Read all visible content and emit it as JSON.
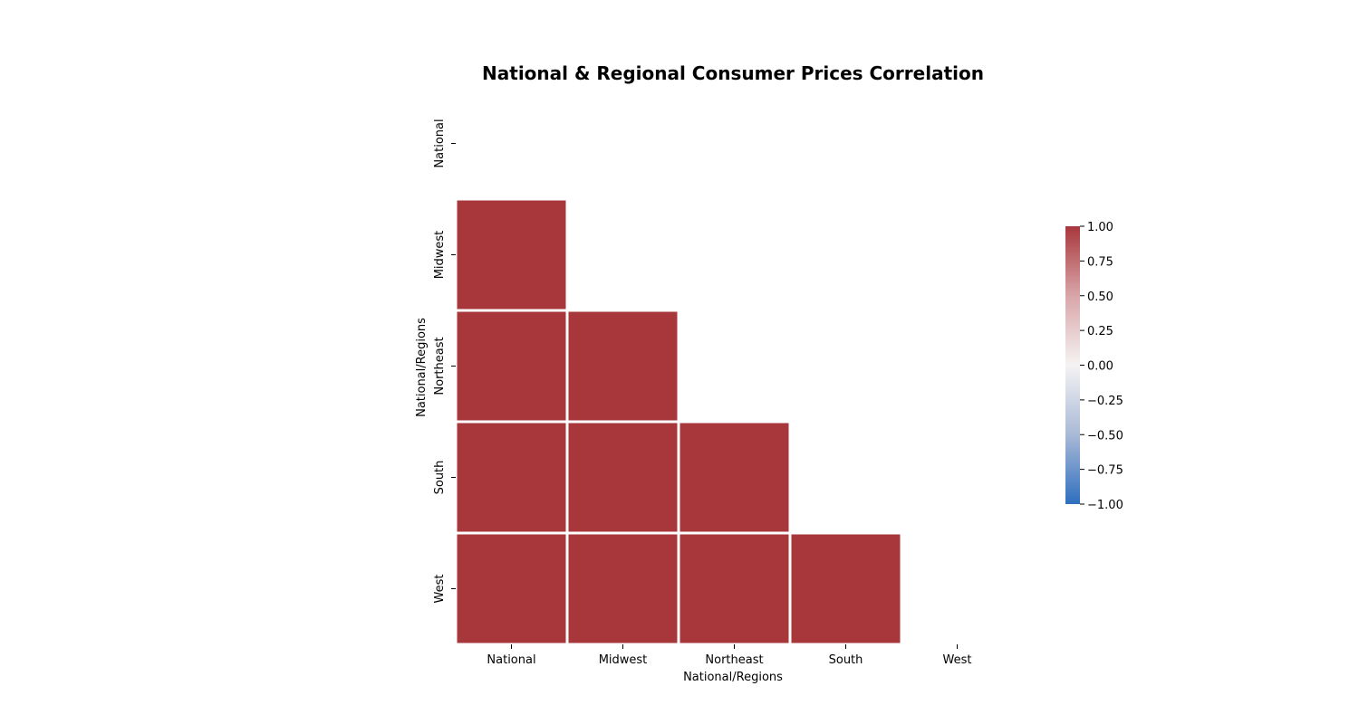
{
  "chart_data": {
    "type": "heatmap",
    "title": "National & Regional Consumer Prices Correlation",
    "xlabel": "National/Regions",
    "ylabel": "National/Regions",
    "x_categories": [
      "National",
      "Midwest",
      "Northeast",
      "South",
      "West"
    ],
    "y_categories": [
      "National",
      "Midwest",
      "Northeast",
      "South",
      "West"
    ],
    "mask": "upper-triangle-including-diagonal",
    "values": [
      [
        null,
        null,
        null,
        null,
        null
      ],
      [
        1.0,
        null,
        null,
        null,
        null
      ],
      [
        1.0,
        1.0,
        null,
        null,
        null
      ],
      [
        1.0,
        1.0,
        1.0,
        null,
        null
      ],
      [
        1.0,
        1.0,
        1.0,
        1.0,
        null
      ]
    ],
    "colorbar": {
      "colormap": "diverging blue-white-red",
      "vmin": -1.0,
      "vmax": 1.0,
      "ticks": [
        1.0,
        0.75,
        0.5,
        0.25,
        0.0,
        -0.25,
        -0.5,
        -0.75,
        -1.0
      ],
      "tick_labels": [
        "1.00",
        "0.75",
        "0.50",
        "0.25",
        "0.00",
        "−0.25",
        "−0.50",
        "−0.75",
        "−1.00"
      ],
      "colors": {
        "high": "#a8373c",
        "mid_high": "#d9a5a8",
        "mid": "#f5f3f3",
        "mid_low": "#a9b9d6",
        "low": "#2e6fbf"
      }
    },
    "grid": false,
    "legend": "colorbar-right"
  }
}
